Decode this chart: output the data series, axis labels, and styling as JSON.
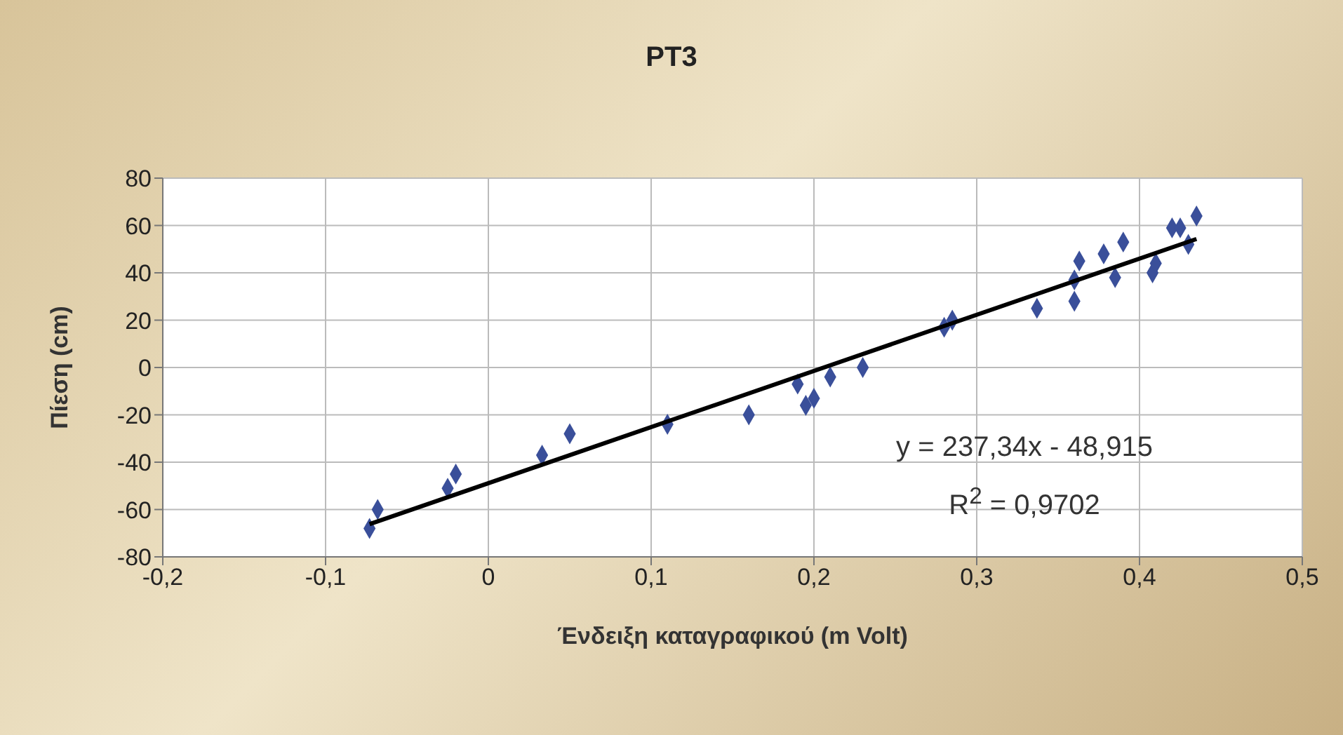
{
  "chart_data": {
    "type": "scatter",
    "title": "PT3",
    "xlabel": "Ένδειξη καταγραφικού (m Volt)",
    "ylabel": "Πίεση (cm)",
    "annotations": [
      "y = 237,34x - 48,915",
      "R$^{2}$ = 0,9702"
    ],
    "xlim": [
      -0.2,
      0.5
    ],
    "xticks": [
      {
        "value": -0.2,
        "label": "-0,2"
      },
      {
        "value": -0.1,
        "label": "-0,1"
      },
      0,
      {
        "value": 0.1,
        "label": "0,1"
      },
      {
        "value": 0.2,
        "label": "0,2"
      },
      {
        "value": 0.3,
        "label": "0,3"
      },
      {
        "value": 0.4,
        "label": "0,4"
      },
      {
        "value": 0.5,
        "label": "0,5"
      }
    ],
    "ylim": [
      -80,
      80
    ],
    "yticks": [
      -80,
      -60,
      -40,
      -20,
      0,
      20,
      40,
      60,
      80
    ],
    "grid": true,
    "marker": "diamond",
    "series": [
      {
        "color": "#3a4f9a",
        "x": [
          -0.073,
          -0.068,
          -0.025,
          -0.02,
          0.033,
          0.05,
          0.11,
          0.16,
          0.19,
          0.195,
          0.2,
          0.21,
          0.23,
          0.28,
          0.285,
          0.337,
          0.36,
          0.36,
          0.363,
          0.378,
          0.385,
          0.39,
          0.408,
          0.41,
          0.42,
          0.425,
          0.43,
          0.435
        ],
        "values": [
          -68,
          -60,
          -51,
          -45,
          -37,
          -28,
          -24,
          -20,
          -7,
          -16,
          -13,
          -4,
          0,
          17,
          20,
          25,
          28,
          37,
          45,
          48,
          38,
          53,
          40,
          44,
          59,
          59,
          52,
          64
        ]
      },
      {
        "type": "line",
        "color": "#000000",
        "marker": "none",
        "x": [
          -0.073,
          0.435
        ],
        "values": [
          -66.2,
          54.3
        ]
      }
    ]
  }
}
